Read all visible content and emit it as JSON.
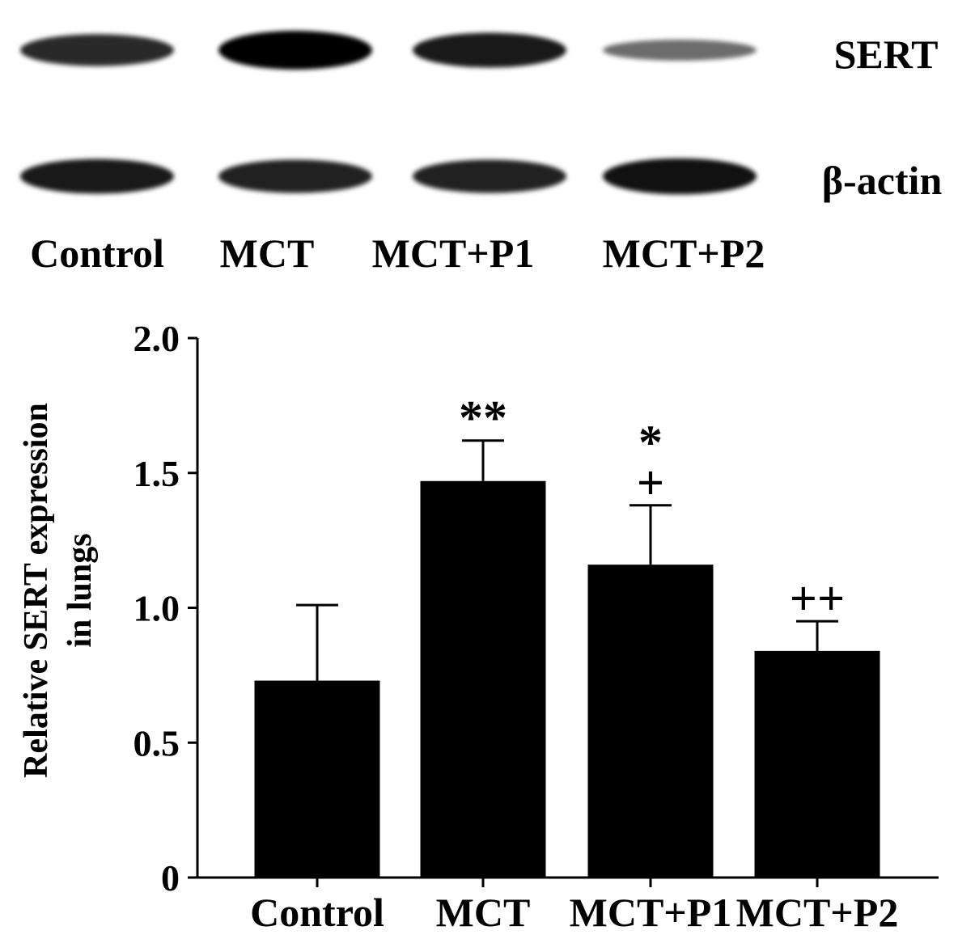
{
  "blot": {
    "rows": [
      {
        "label": "SERT",
        "intensity": [
          0.75,
          1.0,
          0.85,
          0.35
        ]
      },
      {
        "label": "β-actin",
        "intensity": [
          0.85,
          0.8,
          0.8,
          0.9
        ]
      }
    ],
    "lane_labels": [
      "Control",
      "MCT",
      "MCT+P1",
      "MCT+P2"
    ]
  },
  "chart_data": {
    "type": "bar",
    "categories": [
      "Control",
      "MCT",
      "MCT+P1",
      "MCT+P2"
    ],
    "values": [
      0.73,
      1.47,
      1.16,
      0.84
    ],
    "errors": [
      0.28,
      0.15,
      0.22,
      0.11
    ],
    "annotations": [
      {
        "category": "MCT",
        "lines": [
          "**"
        ]
      },
      {
        "category": "MCT+P1",
        "lines": [
          "*",
          "+"
        ]
      },
      {
        "category": "MCT+P2",
        "lines": [
          "++"
        ]
      }
    ],
    "ylabel_lines": [
      "Relative SERT expression",
      "in lungs"
    ],
    "ylim": [
      0,
      2.0
    ],
    "yticks": [
      0,
      0.5,
      1.0,
      1.5,
      2.0
    ],
    "ytick_labels": [
      "0",
      "0.5",
      "1.0",
      "1.5",
      "2.0"
    ],
    "bar_color": "#000000",
    "grid": false
  }
}
